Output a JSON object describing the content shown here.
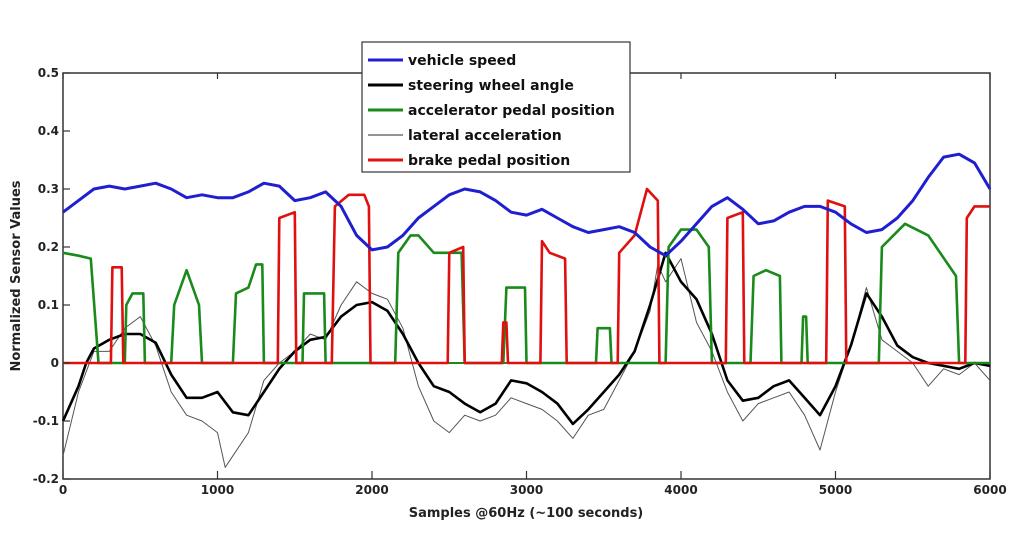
{
  "chart_data": {
    "type": "line",
    "title": "",
    "xlabel": "Samples @60Hz (~100 seconds)",
    "ylabel": "Normalized Sensor Values",
    "xlim": [
      0,
      6000
    ],
    "ylim": [
      -0.2,
      0.5
    ],
    "xticks": [
      "0",
      "1000",
      "2000",
      "3000",
      "4000",
      "5000",
      "6000"
    ],
    "yticks": [
      "-0.2",
      "-0.1",
      "0",
      "0.1",
      "0.2",
      "0.3",
      "0.4",
      "0.5"
    ],
    "grid": false,
    "legend_position": "top-center",
    "series": [
      {
        "name": "vehicle speed",
        "color": "#1f1fd0",
        "x": [
          0,
          100,
          200,
          300,
          400,
          500,
          600,
          700,
          800,
          900,
          1000,
          1100,
          1200,
          1300,
          1400,
          1500,
          1600,
          1700,
          1800,
          1900,
          2000,
          2100,
          2200,
          2300,
          2400,
          2500,
          2600,
          2700,
          2800,
          2900,
          3000,
          3100,
          3200,
          3300,
          3400,
          3500,
          3600,
          3700,
          3800,
          3900,
          4000,
          4100,
          4200,
          4300,
          4400,
          4500,
          4600,
          4700,
          4800,
          4900,
          5000,
          5100,
          5200,
          5300,
          5400,
          5500,
          5600,
          5700,
          5800,
          5900,
          6000
        ],
        "y": [
          0.26,
          0.28,
          0.3,
          0.305,
          0.3,
          0.305,
          0.31,
          0.3,
          0.285,
          0.29,
          0.285,
          0.285,
          0.295,
          0.31,
          0.305,
          0.28,
          0.285,
          0.295,
          0.27,
          0.22,
          0.195,
          0.2,
          0.22,
          0.25,
          0.27,
          0.29,
          0.3,
          0.295,
          0.28,
          0.26,
          0.255,
          0.265,
          0.25,
          0.235,
          0.225,
          0.23,
          0.235,
          0.225,
          0.2,
          0.185,
          0.21,
          0.24,
          0.27,
          0.285,
          0.265,
          0.24,
          0.245,
          0.26,
          0.27,
          0.27,
          0.26,
          0.24,
          0.225,
          0.23,
          0.25,
          0.28,
          0.32,
          0.355,
          0.36,
          0.345,
          0.3
        ]
      },
      {
        "name": "steering wheel angle",
        "color": "#000000",
        "x": [
          0,
          100,
          150,
          200,
          300,
          400,
          500,
          600,
          700,
          800,
          900,
          1000,
          1100,
          1200,
          1300,
          1400,
          1500,
          1600,
          1700,
          1800,
          1900,
          2000,
          2100,
          2200,
          2300,
          2400,
          2500,
          2600,
          2700,
          2800,
          2900,
          3000,
          3100,
          3200,
          3300,
          3400,
          3500,
          3600,
          3700,
          3800,
          3900,
          4000,
          4100,
          4200,
          4300,
          4400,
          4500,
          4600,
          4700,
          4800,
          4900,
          5000,
          5100,
          5200,
          5300,
          5400,
          5500,
          5600,
          5700,
          5800,
          5900,
          6000
        ],
        "y": [
          -0.1,
          -0.04,
          0.0,
          0.025,
          0.04,
          0.05,
          0.05,
          0.035,
          -0.02,
          -0.06,
          -0.06,
          -0.05,
          -0.085,
          -0.09,
          -0.05,
          -0.01,
          0.02,
          0.04,
          0.045,
          0.08,
          0.1,
          0.105,
          0.09,
          0.05,
          0.0,
          -0.04,
          -0.05,
          -0.07,
          -0.085,
          -0.07,
          -0.03,
          -0.035,
          -0.05,
          -0.07,
          -0.105,
          -0.08,
          -0.05,
          -0.02,
          0.02,
          0.1,
          0.19,
          0.14,
          0.11,
          0.05,
          -0.03,
          -0.065,
          -0.06,
          -0.04,
          -0.03,
          -0.06,
          -0.09,
          -0.04,
          0.03,
          0.12,
          0.08,
          0.03,
          0.01,
          0.0,
          -0.005,
          -0.01,
          0.0,
          -0.005
        ]
      },
      {
        "name": "accelerator pedal position",
        "color": "#1a8a1a",
        "x": [
          0,
          100,
          180,
          230,
          400,
          410,
          450,
          520,
          530,
          700,
          720,
          800,
          880,
          900,
          1100,
          1120,
          1200,
          1250,
          1290,
          1300,
          1550,
          1560,
          1690,
          1700,
          2150,
          2170,
          2250,
          2300,
          2400,
          2500,
          2580,
          2600,
          2850,
          2870,
          2990,
          3000,
          3450,
          3460,
          3540,
          3550,
          3900,
          3920,
          4000,
          4100,
          4180,
          4200,
          4450,
          4470,
          4550,
          4640,
          4650,
          4780,
          4790,
          4810,
          4820,
          5280,
          5300,
          5450,
          5600,
          5780,
          5800,
          6000
        ],
        "y": [
          0.19,
          0.185,
          0.18,
          0.0,
          0.0,
          0.1,
          0.12,
          0.12,
          0.0,
          0.0,
          0.1,
          0.16,
          0.1,
          0.0,
          0.0,
          0.12,
          0.13,
          0.17,
          0.17,
          0.0,
          0.0,
          0.12,
          0.12,
          0.0,
          0.0,
          0.19,
          0.22,
          0.22,
          0.19,
          0.19,
          0.19,
          0.0,
          0.0,
          0.13,
          0.13,
          0.0,
          0.0,
          0.06,
          0.06,
          0.0,
          0.0,
          0.2,
          0.23,
          0.23,
          0.2,
          0.0,
          0.0,
          0.15,
          0.16,
          0.15,
          0.0,
          0.0,
          0.08,
          0.08,
          0.0,
          0.0,
          0.2,
          0.24,
          0.22,
          0.15,
          0.0,
          0.0
        ]
      },
      {
        "name": "lateral acceleration",
        "color": "#555555",
        "x": [
          0,
          100,
          200,
          300,
          400,
          500,
          600,
          700,
          800,
          900,
          1000,
          1050,
          1100,
          1200,
          1300,
          1400,
          1500,
          1600,
          1700,
          1800,
          1900,
          2000,
          2100,
          2200,
          2300,
          2400,
          2500,
          2600,
          2700,
          2800,
          2900,
          3000,
          3100,
          3200,
          3300,
          3400,
          3500,
          3600,
          3700,
          3800,
          3850,
          3900,
          4000,
          4100,
          4200,
          4300,
          4400,
          4500,
          4600,
          4700,
          4800,
          4900,
          5000,
          5100,
          5200,
          5300,
          5400,
          5500,
          5600,
          5700,
          5800,
          5900,
          6000
        ],
        "y": [
          -0.16,
          -0.05,
          0.02,
          0.02,
          0.06,
          0.08,
          0.03,
          -0.05,
          -0.09,
          -0.1,
          -0.12,
          -0.18,
          -0.16,
          -0.12,
          -0.03,
          0.0,
          0.02,
          0.05,
          0.04,
          0.1,
          0.14,
          0.12,
          0.11,
          0.06,
          -0.04,
          -0.1,
          -0.12,
          -0.09,
          -0.1,
          -0.09,
          -0.06,
          -0.07,
          -0.08,
          -0.1,
          -0.13,
          -0.09,
          -0.08,
          -0.03,
          0.02,
          0.09,
          0.17,
          0.14,
          0.18,
          0.07,
          0.02,
          -0.05,
          -0.1,
          -0.07,
          -0.06,
          -0.05,
          -0.09,
          -0.15,
          -0.05,
          0.03,
          0.13,
          0.04,
          0.02,
          0.0,
          -0.04,
          -0.01,
          -0.02,
          0.0,
          -0.03
        ]
      },
      {
        "name": "brake pedal position",
        "color": "#e01010",
        "x": [
          0,
          310,
          320,
          380,
          390,
          1390,
          1400,
          1500,
          1510,
          1740,
          1760,
          1850,
          1950,
          1980,
          1990,
          2490,
          2500,
          2590,
          2600,
          2840,
          2850,
          2870,
          2880,
          3090,
          3100,
          3150,
          3250,
          3260,
          3590,
          3600,
          3700,
          3780,
          3850,
          3860,
          4290,
          4300,
          4400,
          4410,
          4940,
          4950,
          5060,
          5070,
          5840,
          5850,
          5900,
          6000
        ],
        "y": [
          0.0,
          0.0,
          0.165,
          0.165,
          0.0,
          0.0,
          0.25,
          0.26,
          0.0,
          0.0,
          0.27,
          0.29,
          0.29,
          0.27,
          0.0,
          0.0,
          0.19,
          0.2,
          0.0,
          0.0,
          0.07,
          0.07,
          0.0,
          0.0,
          0.21,
          0.19,
          0.18,
          0.0,
          0.0,
          0.19,
          0.22,
          0.3,
          0.28,
          0.0,
          0.0,
          0.25,
          0.26,
          0.0,
          0.0,
          0.28,
          0.27,
          0.0,
          0.0,
          0.25,
          0.27,
          0.27
        ]
      }
    ]
  }
}
